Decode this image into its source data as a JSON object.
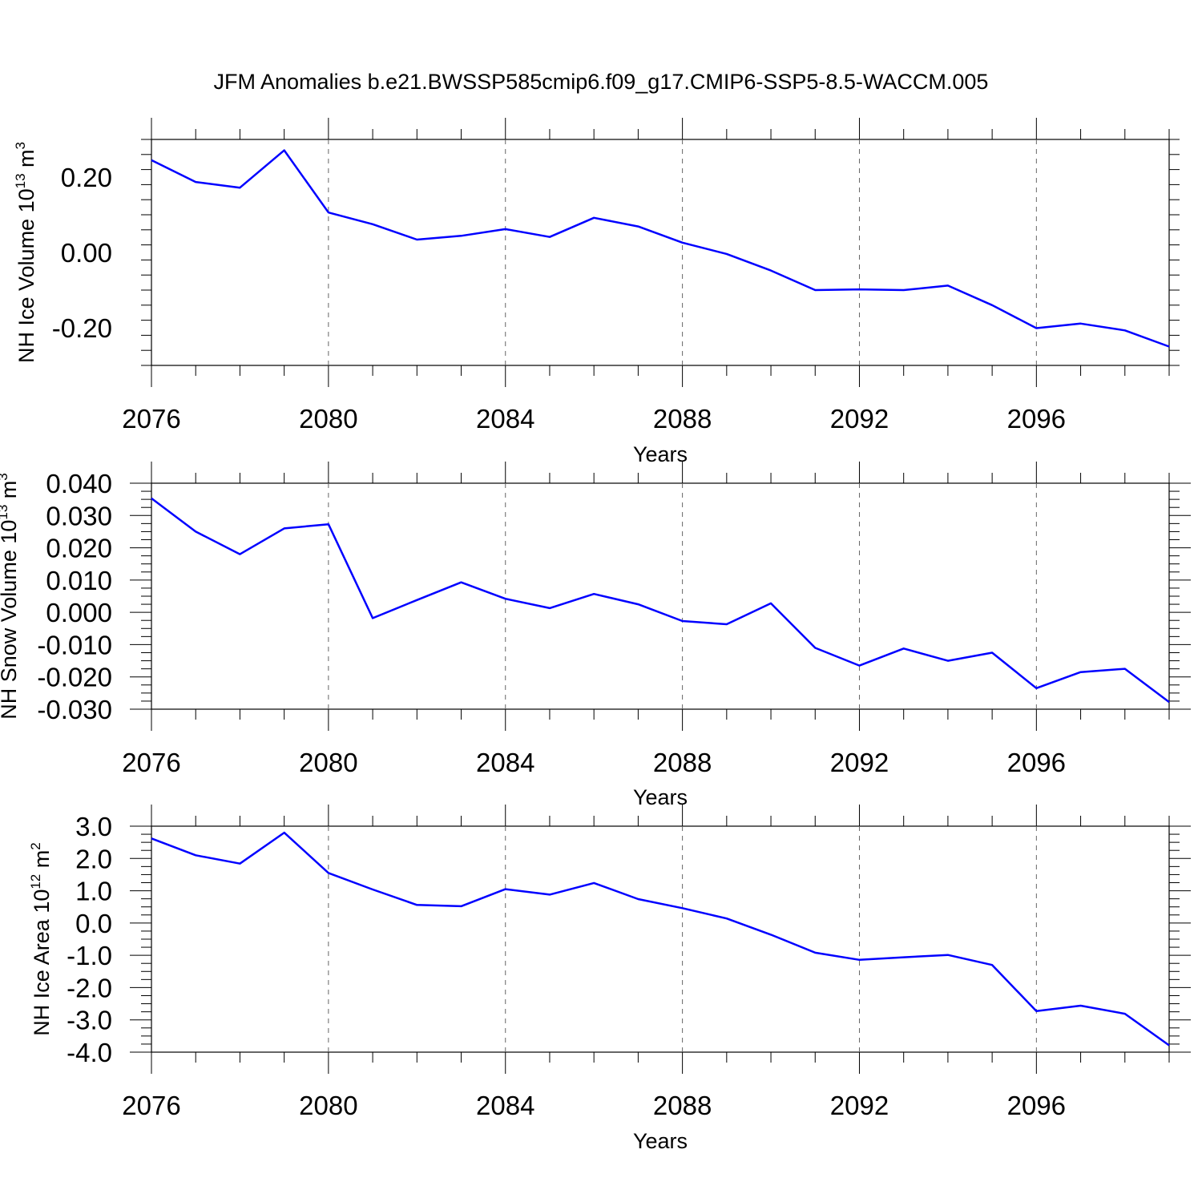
{
  "title": "JFM Anomalies b.e21.BWSSP585cmip6.f09_g17.CMIP6-SSP5-8.5-WACCM.005",
  "line_color": "#0000ff",
  "chart_data": [
    {
      "type": "line",
      "ylabel_main": "NH Ice Volume 10",
      "ylabel_exp1": "13",
      "ylabel_mid": " m",
      "ylabel_exp2": "3",
      "xlabel": "Years",
      "xlim": [
        2076,
        2099
      ],
      "ylim": [
        -0.3,
        0.3
      ],
      "x_ticks": [
        2076,
        2080,
        2084,
        2088,
        2092,
        2096
      ],
      "y_ticks": [
        -0.2,
        0.0,
        0.2
      ],
      "y_tick_labels": [
        "-0.20",
        "0.00",
        "0.20"
      ],
      "x": [
        2076,
        2077,
        2078,
        2079,
        2080,
        2081,
        2082,
        2083,
        2084,
        2085,
        2086,
        2087,
        2088,
        2089,
        2090,
        2091,
        2092,
        2093,
        2094,
        2095,
        2096,
        2097,
        2098,
        2099
      ],
      "y": [
        0.245,
        0.187,
        0.172,
        0.271,
        0.106,
        0.075,
        0.034,
        0.044,
        0.062,
        0.041,
        0.092,
        0.069,
        0.026,
        -0.004,
        -0.048,
        -0.1,
        -0.098,
        -0.1,
        -0.088,
        -0.14,
        -0.201,
        -0.189,
        -0.207,
        -0.25
      ]
    },
    {
      "type": "line",
      "ylabel_main": "NH Snow Volume 10",
      "ylabel_exp1": "13",
      "ylabel_mid": " m",
      "ylabel_exp2": "3",
      "xlabel": "Years",
      "xlim": [
        2076,
        2099
      ],
      "ylim": [
        -0.03,
        0.04
      ],
      "x_ticks": [
        2076,
        2080,
        2084,
        2088,
        2092,
        2096
      ],
      "y_ticks": [
        -0.03,
        -0.02,
        -0.01,
        0.0,
        0.01,
        0.02,
        0.03,
        0.04
      ],
      "y_tick_labels": [
        "-0.030",
        "-0.020",
        "-0.010",
        "0.000",
        "0.010",
        "0.020",
        "0.030",
        "0.040"
      ],
      "x": [
        2076,
        2077,
        2078,
        2079,
        2080,
        2081,
        2082,
        2083,
        2084,
        2085,
        2086,
        2087,
        2088,
        2089,
        2090,
        2091,
        2092,
        2093,
        2094,
        2095,
        2096,
        2097,
        2098,
        2099
      ],
      "y": [
        0.0353,
        0.025,
        0.018,
        0.026,
        0.0273,
        -0.0018,
        0.0038,
        0.0093,
        0.0042,
        0.0013,
        0.0057,
        0.0025,
        -0.0027,
        -0.0037,
        0.0028,
        -0.011,
        -0.0165,
        -0.0112,
        -0.015,
        -0.0125,
        -0.0235,
        -0.0185,
        -0.0175,
        -0.0278
      ]
    },
    {
      "type": "line",
      "ylabel_main": "NH Ice Area 10",
      "ylabel_exp1": "12",
      "ylabel_mid": " m",
      "ylabel_exp2": "2",
      "xlabel": "Years",
      "xlim": [
        2076,
        2099
      ],
      "ylim": [
        -4.0,
        3.0
      ],
      "x_ticks": [
        2076,
        2080,
        2084,
        2088,
        2092,
        2096
      ],
      "y_ticks": [
        -4.0,
        -3.0,
        -2.0,
        -1.0,
        0.0,
        1.0,
        2.0,
        3.0
      ],
      "y_tick_labels": [
        "-4.0",
        "-3.0",
        "-2.0",
        "-1.0",
        "0.0",
        "1.0",
        "2.0",
        "3.0"
      ],
      "x": [
        2076,
        2077,
        2078,
        2079,
        2080,
        2081,
        2082,
        2083,
        2084,
        2085,
        2086,
        2087,
        2088,
        2089,
        2090,
        2091,
        2092,
        2093,
        2094,
        2095,
        2096,
        2097,
        2098,
        2099
      ],
      "y": [
        2.62,
        2.1,
        1.84,
        2.8,
        1.55,
        1.04,
        0.56,
        0.52,
        1.05,
        0.88,
        1.24,
        0.74,
        0.46,
        0.14,
        -0.36,
        -0.92,
        -1.14,
        -1.06,
        -0.99,
        -1.3,
        -2.73,
        -2.56,
        -2.81,
        -3.79
      ]
    }
  ]
}
